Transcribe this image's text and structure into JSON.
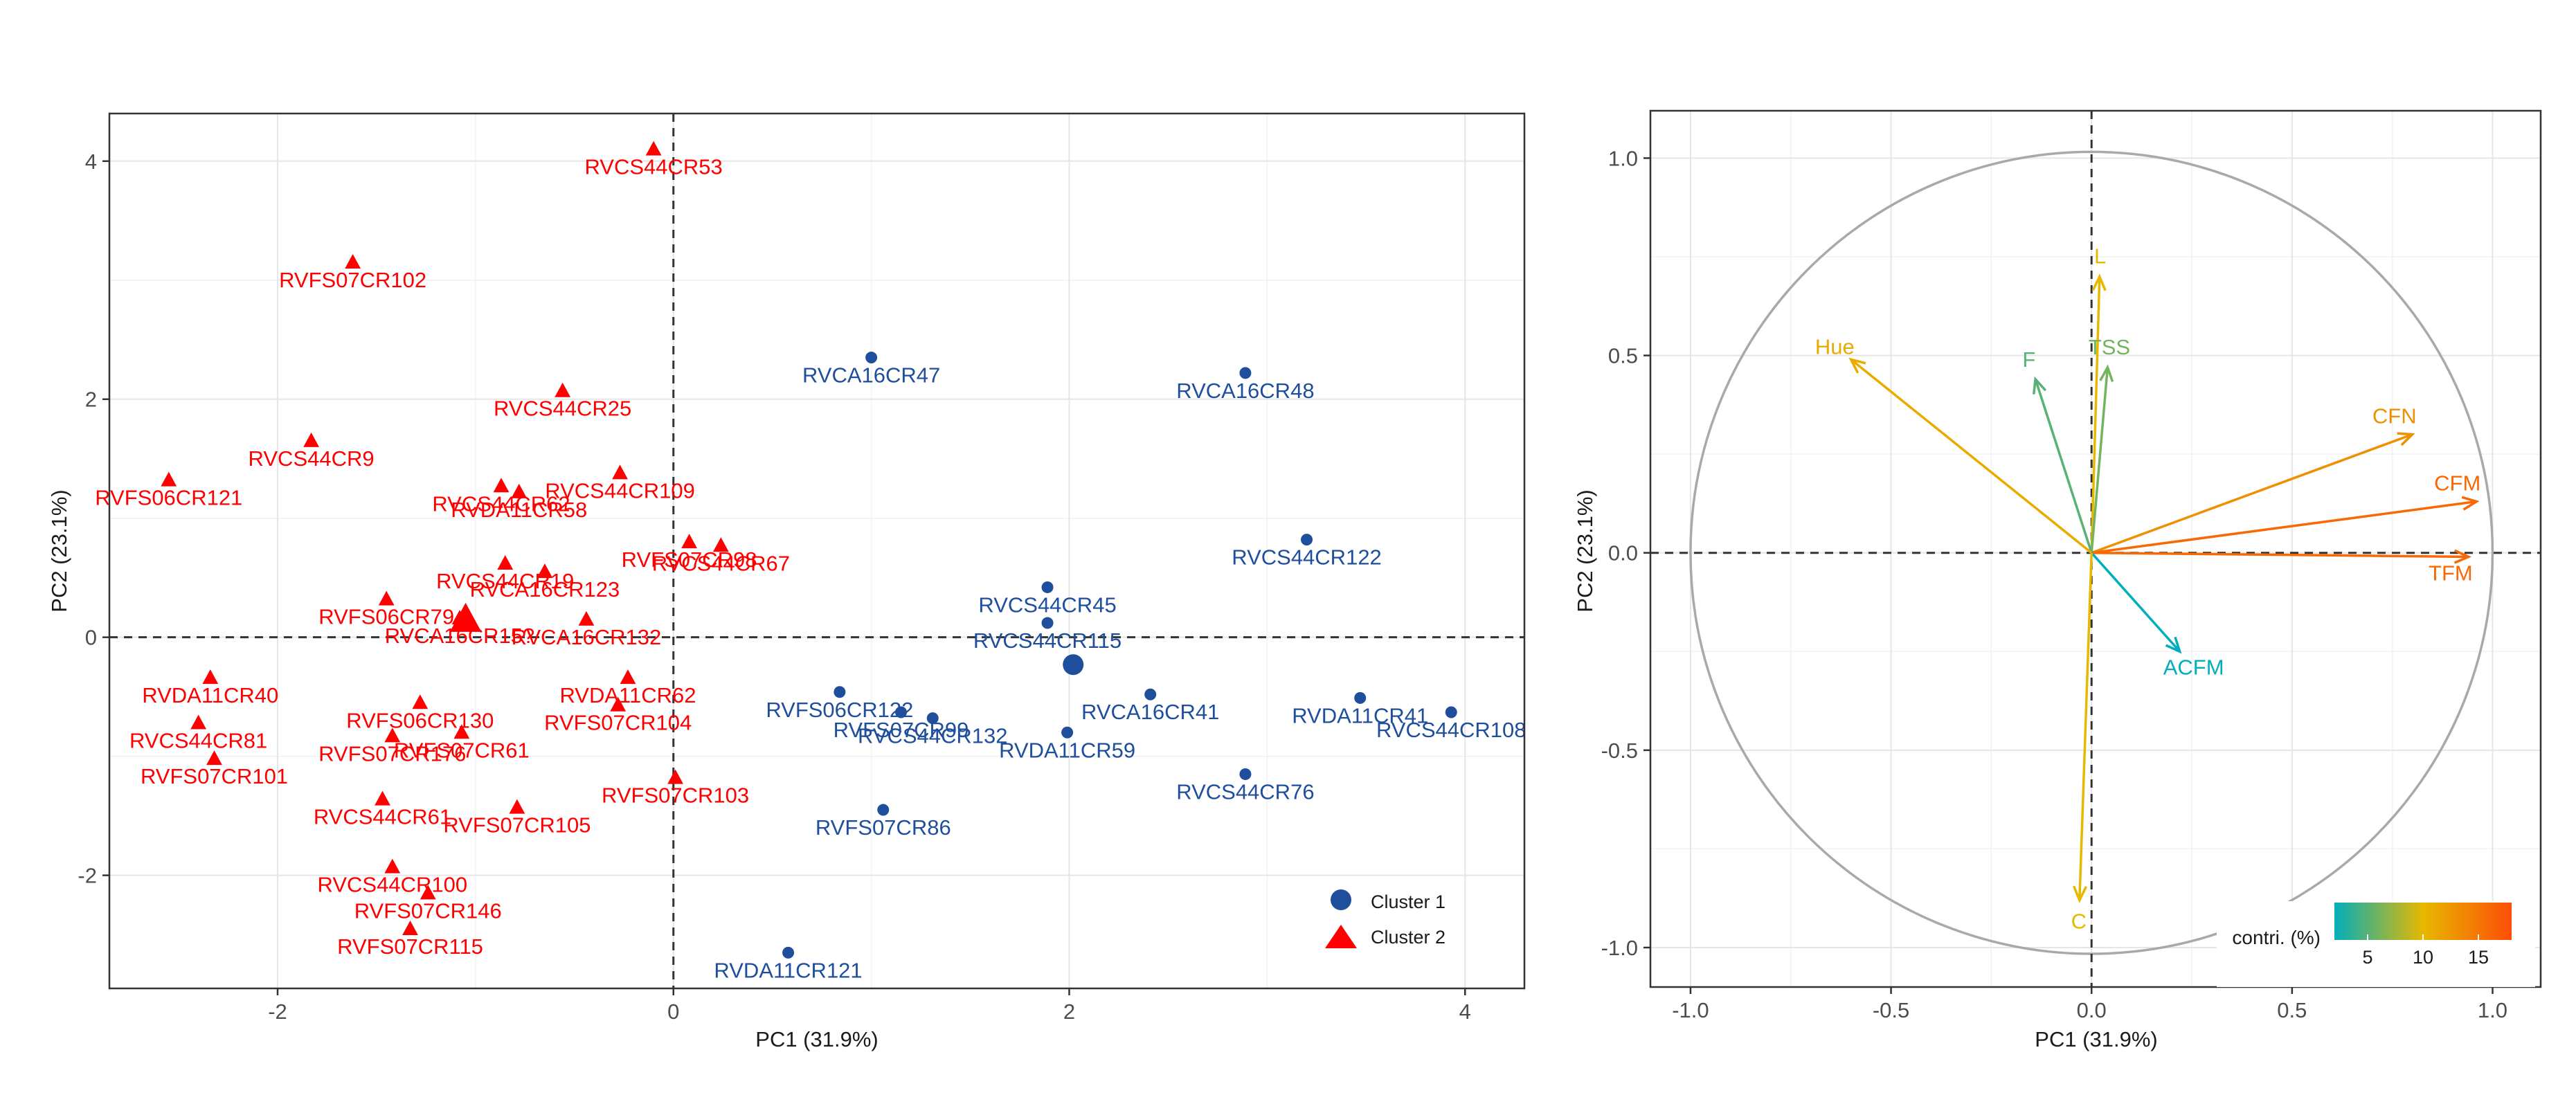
{
  "chart_data": [
    {
      "type": "scatter",
      "title": "",
      "xlabel": "PC1 (31.9%)",
      "ylabel": "PC2 (23.1%)",
      "xlim": [
        -2.85,
        4.3
      ],
      "ylim": [
        -2.95,
        4.4
      ],
      "x_ticks": [
        -2,
        0,
        2,
        4
      ],
      "y_ticks": [
        -2,
        0,
        2,
        4
      ],
      "x_tick_labels": [
        "-2",
        "0",
        "2",
        "4"
      ],
      "y_tick_labels": [
        "-2",
        "0",
        "2",
        "4"
      ],
      "grid": true,
      "reference_lines": {
        "x": 0,
        "y": 0,
        "style": "dashed"
      },
      "legend": {
        "placement": "bottom-right",
        "entries": [
          {
            "name": "Cluster 1",
            "marker": "circle",
            "color": "#1f4e9c"
          },
          {
            "name": "Cluster 2",
            "marker": "triangle",
            "color": "#ff0000"
          }
        ]
      },
      "series": [
        {
          "name": "Cluster 1",
          "marker": "circle",
          "color": "#1f4e9c",
          "centroid": [
            2.02,
            -0.23
          ],
          "points": [
            {
              "label": "RVCA16CR47",
              "x": 1.0,
              "y": 2.35
            },
            {
              "label": "RVCA16CR48",
              "x": 2.89,
              "y": 2.22
            },
            {
              "label": "RVCS44CR45",
              "x": 1.89,
              "y": 0.42
            },
            {
              "label": "RVCS44CR115",
              "x": 1.89,
              "y": 0.12
            },
            {
              "label": "RVCS44CR122",
              "x": 3.2,
              "y": 0.82
            },
            {
              "label": "RVFS06CR122",
              "x": 0.84,
              "y": -0.46
            },
            {
              "label": "RVFS07CR99",
              "x": 1.15,
              "y": -0.63
            },
            {
              "label": "RVCS44CR132",
              "x": 1.31,
              "y": -0.68
            },
            {
              "label": "RVDA11CR59",
              "x": 1.99,
              "y": -0.8
            },
            {
              "label": "RVCA16CR41",
              "x": 2.41,
              "y": -0.48
            },
            {
              "label": "RVDA11CR41",
              "x": 3.47,
              "y": -0.51
            },
            {
              "label": "RVCS44CR108",
              "x": 3.93,
              "y": -0.63
            },
            {
              "label": "RVCS44CR76",
              "x": 2.89,
              "y": -1.15
            },
            {
              "label": "RVFS07CR86",
              "x": 1.06,
              "y": -1.45
            },
            {
              "label": "RVDA11CR121",
              "x": 0.58,
              "y": -2.65
            }
          ]
        },
        {
          "name": "Cluster 2",
          "marker": "triangle",
          "color": "#ff0000",
          "centroid": [
            -1.05,
            0.15
          ],
          "points": [
            {
              "label": "RVCS44CR53",
              "x": -0.1,
              "y": 4.1
            },
            {
              "label": "RVFS07CR102",
              "x": -1.62,
              "y": 3.15
            },
            {
              "label": "RVCS44CR25",
              "x": -0.56,
              "y": 2.07
            },
            {
              "label": "RVCS44CR9",
              "x": -1.83,
              "y": 1.65
            },
            {
              "label": "RVFS06CR121",
              "x": -2.55,
              "y": 1.32
            },
            {
              "label": "RVCS44CR62",
              "x": -0.87,
              "y": 1.27
            },
            {
              "label": "RVDA11CR58",
              "x": -0.78,
              "y": 1.22
            },
            {
              "label": "RVCS44CR109",
              "x": -0.27,
              "y": 1.38
            },
            {
              "label": "RVFS07CR98",
              "x": 0.08,
              "y": 0.8
            },
            {
              "label": "RVCS44CR67",
              "x": 0.24,
              "y": 0.77
            },
            {
              "label": "RVCS44CR19",
              "x": -0.85,
              "y": 0.62
            },
            {
              "label": "RVCA16CR123",
              "x": -0.65,
              "y": 0.55
            },
            {
              "label": "RVFS06CR79",
              "x": -1.45,
              "y": 0.32
            },
            {
              "label": "RVCA16CR15?",
              "x": -1.08,
              "y": 0.16
            },
            {
              "label": "RVCA16CR132",
              "x": -0.44,
              "y": 0.15
            },
            {
              "label": "RVDA11CR40",
              "x": -2.34,
              "y": -0.34
            },
            {
              "label": "RVDA11CR62",
              "x": -0.23,
              "y": -0.34
            },
            {
              "label": "RVFS06CR130",
              "x": -1.28,
              "y": -0.55
            },
            {
              "label": "RVFS07CR104",
              "x": -0.28,
              "y": -0.57
            },
            {
              "label": "RVCS44CR81",
              "x": -2.4,
              "y": -0.72
            },
            {
              "label": "RVFS07CR176",
              "x": -1.42,
              "y": -0.83
            },
            {
              "label": "RVFS07CR61",
              "x": -1.07,
              "y": -0.8
            },
            {
              "label": "RVFS07CR101",
              "x": -2.32,
              "y": -1.02
            },
            {
              "label": "RVFS07CR103",
              "x": 0.01,
              "y": -1.18
            },
            {
              "label": "RVCS44CR61",
              "x": -1.47,
              "y": -1.36
            },
            {
              "label": "RVFS07CR105",
              "x": -0.79,
              "y": -1.43
            },
            {
              "label": "RVCS44CR100",
              "x": -1.42,
              "y": -1.93
            },
            {
              "label": "RVFS07CR146",
              "x": -1.24,
              "y": -2.15
            },
            {
              "label": "RVFS07CR115",
              "x": -1.33,
              "y": -2.45
            }
          ]
        }
      ]
    },
    {
      "type": "correlation-circle",
      "title": "",
      "xlabel": "PC1 (31.9%)",
      "ylabel": "PC2 (23.1%)",
      "xlim": [
        -1.1,
        1.12
      ],
      "ylim": [
        -1.1,
        1.12
      ],
      "x_ticks": [
        -1.0,
        -0.5,
        0.0,
        0.5,
        1.0
      ],
      "y_ticks": [
        -1.0,
        -0.5,
        0.0,
        0.5,
        1.0
      ],
      "x_tick_labels": [
        "-1.0",
        "-0.5",
        "0.0",
        "0.5",
        "1.0"
      ],
      "y_tick_labels": [
        "-1.0",
        "-0.5",
        "0.0",
        "0.5",
        "1.0"
      ],
      "grid": true,
      "reference_lines": {
        "x": 0,
        "y": 0,
        "style": "dashed"
      },
      "unit_circle": true,
      "color_scale": {
        "title": "contri. (%)",
        "range": [
          2,
          18
        ],
        "ticks": [
          5,
          10,
          15
        ],
        "tick_labels": [
          "5",
          "10",
          "15"
        ],
        "colors": [
          "#00afbb",
          "#e7b800",
          "#fc4e07"
        ]
      },
      "variables": [
        {
          "name": "L",
          "x": 0.02,
          "y": 0.7,
          "contrib": 10
        },
        {
          "name": "TSS",
          "x": 0.04,
          "y": 0.47,
          "contrib": 6
        },
        {
          "name": "F",
          "x": -0.14,
          "y": 0.44,
          "contrib": 5
        },
        {
          "name": "Hue",
          "x": -0.6,
          "y": 0.49,
          "contrib": 11
        },
        {
          "name": "CFN",
          "x": 0.8,
          "y": 0.3,
          "contrib": 13
        },
        {
          "name": "CFM",
          "x": 0.96,
          "y": 0.13,
          "contrib": 16
        },
        {
          "name": "TFM",
          "x": 0.94,
          "y": -0.01,
          "contrib": 16
        },
        {
          "name": "ACFM",
          "x": 0.22,
          "y": -0.25,
          "contrib": 2
        },
        {
          "name": "C",
          "x": -0.03,
          "y": -0.88,
          "contrib": 10
        }
      ]
    }
  ]
}
